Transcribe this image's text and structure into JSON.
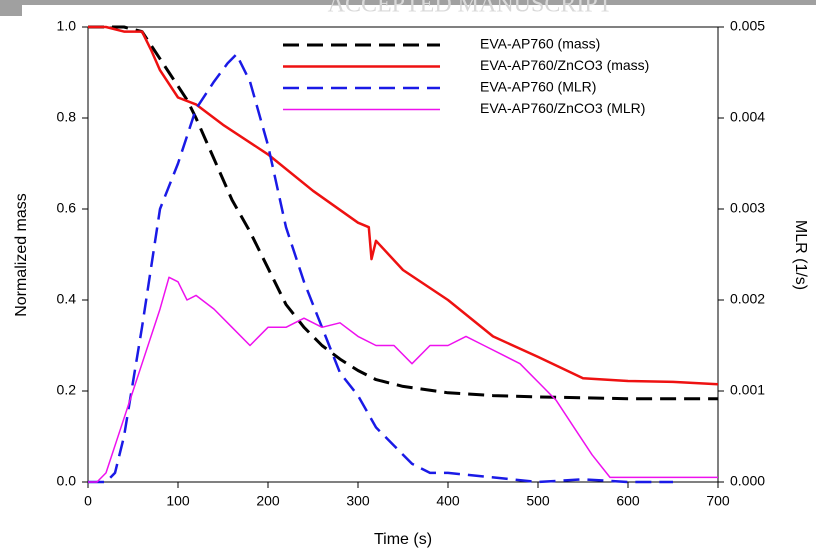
{
  "watermark": "ACCEPTED MANUSCRIPT",
  "chart_data": {
    "type": "line",
    "xlabel": "Time (s)",
    "ylabel": "Normalized mass",
    "y2label": "MLR (1/s)",
    "xlim": [
      0,
      700
    ],
    "xticks": [
      0,
      100,
      200,
      300,
      400,
      500,
      600,
      700
    ],
    "ylim": [
      0,
      1
    ],
    "yticks": [
      {
        "value": 0,
        "label": "0.0"
      },
      {
        "value": 0.2,
        "label": "0.2"
      },
      {
        "value": 0.4,
        "label": "0.4"
      },
      {
        "value": 0.6,
        "label": "0.6"
      },
      {
        "value": 0.8,
        "label": "0.8"
      },
      {
        "value": 1,
        "label": "1.0"
      }
    ],
    "y2lim": [
      0,
      0.005
    ],
    "y2ticks": [
      {
        "value": 0,
        "label": "0.000"
      },
      {
        "value": 0.001,
        "label": "0.001"
      },
      {
        "value": 0.002,
        "label": "0.002"
      },
      {
        "value": 0.003,
        "label": "0.003"
      },
      {
        "value": 0.004,
        "label": "0.004"
      },
      {
        "value": 0.005,
        "label": "0.005"
      }
    ],
    "legend": "top",
    "series": [
      {
        "name": "EVA-AP760 (mass)",
        "color": "#000000",
        "style": "dashed",
        "width": 3,
        "x": [
          0,
          20,
          40,
          60,
          70,
          80,
          90,
          100,
          110,
          120,
          140,
          160,
          180,
          200,
          220,
          240,
          260,
          280,
          300,
          320,
          350,
          400,
          450,
          500,
          550,
          600,
          650,
          700
        ],
        "values": [
          1.0,
          1.0,
          1.0,
          0.99,
          0.96,
          0.93,
          0.9,
          0.87,
          0.84,
          0.8,
          0.71,
          0.62,
          0.55,
          0.47,
          0.39,
          0.34,
          0.3,
          0.27,
          0.245,
          0.225,
          0.21,
          0.196,
          0.19,
          0.187,
          0.185,
          0.183,
          0.183,
          0.183
        ]
      },
      {
        "name": "EVA-AP760/ZnCO3 (mass)",
        "color": "#ee1111",
        "style": "solid",
        "width": 2.5,
        "x": [
          0,
          20,
          40,
          60,
          70,
          80,
          100,
          120,
          150,
          200,
          250,
          300,
          312,
          315,
          320,
          350,
          400,
          450,
          500,
          550,
          600,
          650,
          700
        ],
        "values": [
          1.0,
          1.0,
          0.99,
          0.99,
          0.95,
          0.905,
          0.845,
          0.83,
          0.785,
          0.72,
          0.64,
          0.57,
          0.56,
          0.49,
          0.53,
          0.466,
          0.4,
          0.32,
          0.275,
          0.228,
          0.222,
          0.22,
          0.215
        ]
      },
      {
        "name": "EVA-AP760 (MLR)",
        "color": "#1a1ae6",
        "style": "dashed",
        "width": 2.5,
        "axis": "y2",
        "x": [
          0,
          20,
          30,
          40,
          60,
          80,
          100,
          120,
          140,
          155,
          165,
          180,
          200,
          220,
          240,
          260,
          280,
          300,
          320,
          340,
          360,
          380,
          400,
          450,
          500,
          550,
          600,
          650
        ],
        "values": [
          0,
          0,
          0.0001,
          0.0005,
          0.0017,
          0.003,
          0.0035,
          0.0041,
          0.0044,
          0.0046,
          0.0047,
          0.0044,
          0.0037,
          0.0028,
          0.0022,
          0.0017,
          0.0012,
          0.00095,
          0.0006,
          0.0004,
          0.0002,
          0.0001,
          0.0001,
          5e-05,
          0,
          3e-05,
          0,
          0
        ]
      },
      {
        "name": "EVA-AP760/ZnCO3 (MLR)",
        "color": "#ee11ee",
        "style": "solid",
        "width": 1.5,
        "axis": "y2",
        "x": [
          0,
          10,
          20,
          40,
          60,
          80,
          90,
          100,
          110,
          120,
          140,
          160,
          180,
          200,
          220,
          240,
          260,
          280,
          300,
          320,
          340,
          360,
          380,
          400,
          420,
          440,
          460,
          480,
          500,
          520,
          540,
          560,
          580,
          600,
          700
        ],
        "values": [
          0,
          0,
          0.0001,
          0.0007,
          0.0013,
          0.0019,
          0.00225,
          0.0022,
          0.002,
          0.00205,
          0.0019,
          0.0017,
          0.0015,
          0.0017,
          0.0017,
          0.0018,
          0.0017,
          0.00175,
          0.0016,
          0.0015,
          0.0015,
          0.0013,
          0.0015,
          0.0015,
          0.0016,
          0.0015,
          0.0014,
          0.0013,
          0.0011,
          0.0009,
          0.0006,
          0.0003,
          5e-05,
          5e-05,
          5e-05
        ]
      }
    ]
  }
}
